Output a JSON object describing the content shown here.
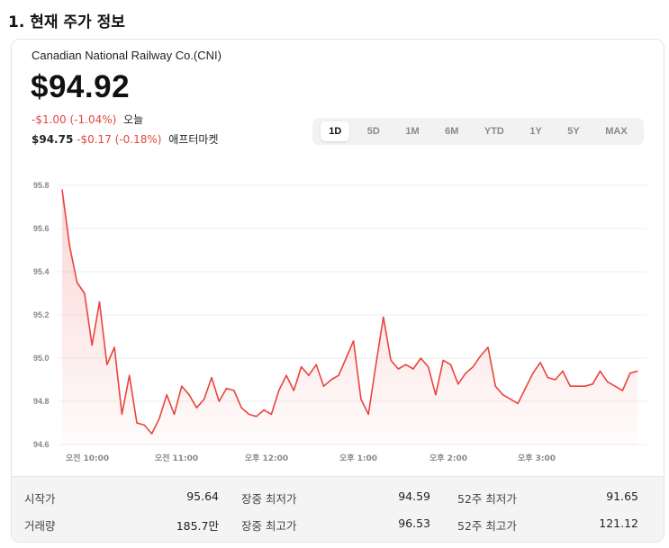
{
  "section_title": "1. 현재 주가 정보",
  "company": "Canadian National Railway Co.(CNI)",
  "price": "$94.92",
  "change_today": "-$1.00 (-1.04%)",
  "today_label": "오늘",
  "after_price": "$94.75",
  "after_change": "-$0.17 (-0.18%)",
  "after_label": "애프터마켓",
  "tabs": [
    "1D",
    "5D",
    "1M",
    "6M",
    "YTD",
    "1Y",
    "5Y",
    "MAX"
  ],
  "active_tab": "1D",
  "colors": {
    "line": "#e8453c",
    "down": "#e0483e",
    "tab_bg": "#f2f2f3"
  },
  "chart_data": {
    "type": "area",
    "ylim": [
      94.6,
      95.8
    ],
    "y_ticks": [
      "95.8",
      "95.6",
      "95.4",
      "95.2",
      "95.0",
      "94.8",
      "94.6"
    ],
    "x_ticks": [
      "오전 10:00",
      "오전 11:00",
      "오후 12:00",
      "오후 1:00",
      "오후 2:00",
      "오후 3:00"
    ],
    "grid": true,
    "series": [
      {
        "values": [
          95.78,
          95.52,
          95.35,
          95.3,
          95.06,
          95.26,
          94.97,
          95.05,
          94.74,
          94.92,
          94.7,
          94.69,
          94.65,
          94.72,
          94.83,
          94.74,
          94.87,
          94.83,
          94.77,
          94.81,
          94.91,
          94.8,
          94.86,
          94.85,
          94.77,
          94.74,
          94.73,
          94.76,
          94.74,
          94.85,
          94.92,
          94.85,
          94.96,
          94.92,
          94.97,
          94.87,
          94.9,
          94.92,
          95.0,
          95.08,
          94.81,
          94.74,
          94.97,
          95.19,
          94.99,
          94.95,
          94.97,
          94.95,
          95.0,
          94.96,
          94.83,
          94.99,
          94.97,
          94.88,
          94.93,
          94.96,
          95.01,
          95.05,
          94.87,
          94.83,
          94.81,
          94.79,
          94.86,
          94.93,
          94.98,
          94.91,
          94.9,
          94.94,
          94.87,
          94.87,
          94.87,
          94.88,
          94.94,
          94.89,
          94.87,
          94.85,
          94.93,
          94.94
        ]
      }
    ]
  },
  "stats": {
    "open_label": "시작가",
    "open_value": "95.64",
    "day_low_label": "장중 최저가",
    "day_low_value": "94.59",
    "w52_low_label": "52주 최저가",
    "w52_low_value": "91.65",
    "volume_label": "거래량",
    "volume_value": "185.7만",
    "day_high_label": "장중 최고가",
    "day_high_value": "96.53",
    "w52_high_label": "52주 최고가",
    "w52_high_value": "121.12"
  }
}
